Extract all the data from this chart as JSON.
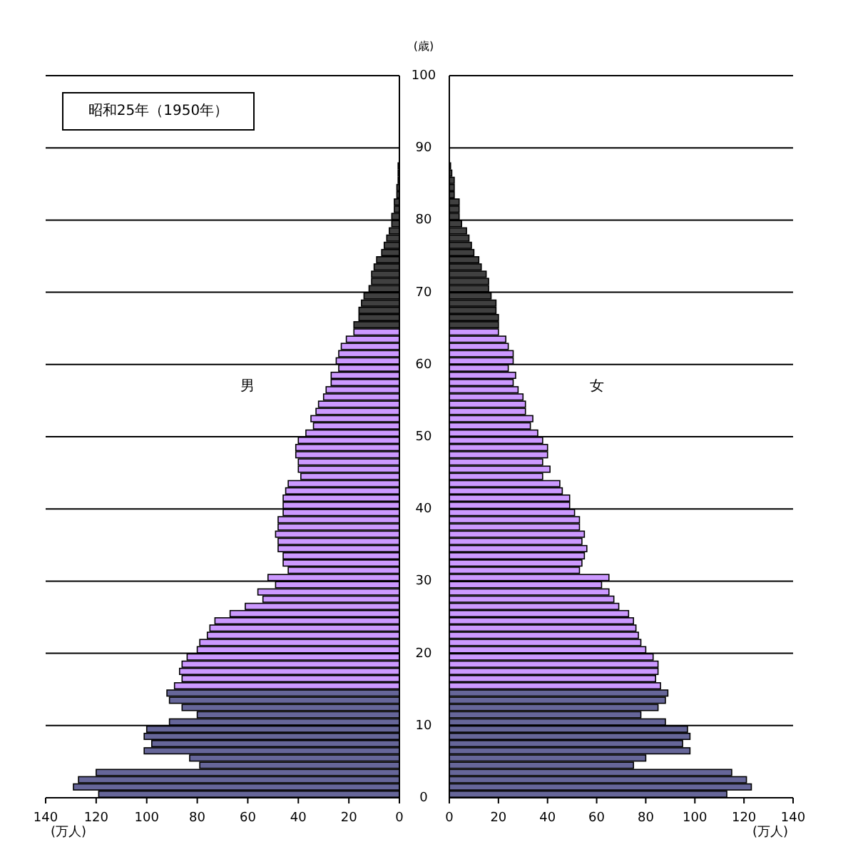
{
  "chart_data": [
    {
      "type": "bar",
      "orientation": "horizontal",
      "title": "昭和25年（1950年）",
      "xlabel": "(万人)",
      "annotations": [
        "男"
      ],
      "xlim": [
        140,
        0
      ],
      "xticks": [
        140,
        120,
        100,
        80,
        60,
        40,
        20,
        0
      ],
      "ylim": [
        0,
        100
      ],
      "yticks": [
        0,
        10,
        20,
        30,
        40,
        50,
        60,
        70,
        80,
        90,
        100
      ],
      "grid": "y",
      "tick_labels": "x",
      "series": [
        {
          "color": "#666699",
          "x": [
            0,
            1,
            2,
            3,
            4,
            5,
            6,
            7,
            8,
            9,
            10,
            11,
            12,
            13,
            14
          ],
          "values": [
            119,
            129,
            127,
            120,
            79,
            83,
            101,
            98,
            101,
            100,
            91,
            80,
            86,
            91,
            92
          ]
        },
        {
          "color": "#cc99ff",
          "x": [
            15,
            16,
            17,
            18,
            19,
            20,
            21,
            22,
            23,
            24,
            25,
            26,
            27,
            28,
            29,
            30,
            31,
            32,
            33,
            34,
            35,
            36,
            37,
            38,
            39,
            40,
            41,
            42,
            43,
            44,
            45,
            46,
            47,
            48,
            49,
            50,
            51,
            52,
            53,
            54,
            55,
            56,
            57,
            58,
            59,
            60,
            61,
            62,
            63,
            64
          ],
          "values": [
            89,
            86,
            87,
            86,
            84,
            80,
            79,
            76,
            75,
            73,
            67,
            61,
            54,
            56,
            49,
            52,
            44,
            46,
            46,
            48,
            48,
            49,
            48,
            48,
            46,
            46,
            46,
            45,
            44,
            39,
            40,
            40,
            41,
            41,
            40,
            37,
            34,
            35,
            33,
            32,
            30,
            29,
            27,
            27,
            24,
            25,
            24,
            23,
            21,
            18
          ]
        },
        {
          "color": "#404040",
          "x": [
            65,
            66,
            67,
            68,
            69,
            70,
            71,
            72,
            73,
            74,
            75,
            76,
            77,
            78,
            79,
            80,
            81,
            82,
            83,
            84,
            85,
            86,
            87
          ],
          "values": [
            18,
            16,
            16,
            15,
            14,
            12,
            11,
            11,
            10,
            9,
            7,
            6,
            5,
            4,
            3,
            3,
            2,
            2,
            1,
            1,
            0.5,
            0.5,
            0.5
          ]
        }
      ]
    },
    {
      "type": "bar",
      "orientation": "horizontal",
      "xlabel": "(万人)",
      "ylabel": "(歳)",
      "annotations": [
        "女"
      ],
      "xlim": [
        0,
        140
      ],
      "xticks": [
        0,
        20,
        40,
        60,
        80,
        100,
        120,
        140
      ],
      "ylim": [
        0,
        100
      ],
      "yticks": [
        0,
        10,
        20,
        30,
        40,
        50,
        60,
        70,
        80,
        90,
        100
      ],
      "grid": "y",
      "series": [
        {
          "color": "#666699",
          "x": [
            0,
            1,
            2,
            3,
            4,
            5,
            6,
            7,
            8,
            9,
            10,
            11,
            12,
            13,
            14
          ],
          "values": [
            113,
            123,
            121,
            115,
            75,
            80,
            98,
            95,
            98,
            97,
            88,
            78,
            85,
            88,
            89
          ]
        },
        {
          "color": "#cc99ff",
          "x": [
            15,
            16,
            17,
            18,
            19,
            20,
            21,
            22,
            23,
            24,
            25,
            26,
            27,
            28,
            29,
            30,
            31,
            32,
            33,
            34,
            35,
            36,
            37,
            38,
            39,
            40,
            41,
            42,
            43,
            44,
            45,
            46,
            47,
            48,
            49,
            50,
            51,
            52,
            53,
            54,
            55,
            56,
            57,
            58,
            59,
            60,
            61,
            62,
            63,
            64
          ],
          "values": [
            86,
            84,
            85,
            85,
            83,
            80,
            78,
            77,
            76,
            75,
            73,
            69,
            67,
            65,
            62,
            65,
            53,
            54,
            55,
            56,
            54,
            55,
            53,
            53,
            51,
            49,
            49,
            46,
            45,
            38,
            41,
            38,
            40,
            40,
            38,
            36,
            33,
            34,
            31,
            31,
            30,
            28,
            26,
            27,
            24,
            26,
            26,
            24,
            23,
            20
          ]
        },
        {
          "color": "#404040",
          "x": [
            65,
            66,
            67,
            68,
            69,
            70,
            71,
            72,
            73,
            74,
            75,
            76,
            77,
            78,
            79,
            80,
            81,
            82,
            83,
            84,
            85,
            86,
            87
          ],
          "values": [
            20,
            20,
            19,
            19,
            17,
            16,
            16,
            15,
            13,
            12,
            10,
            9,
            8,
            7,
            5,
            4,
            4,
            4,
            2,
            2,
            2,
            1,
            0.5
          ]
        }
      ]
    }
  ]
}
